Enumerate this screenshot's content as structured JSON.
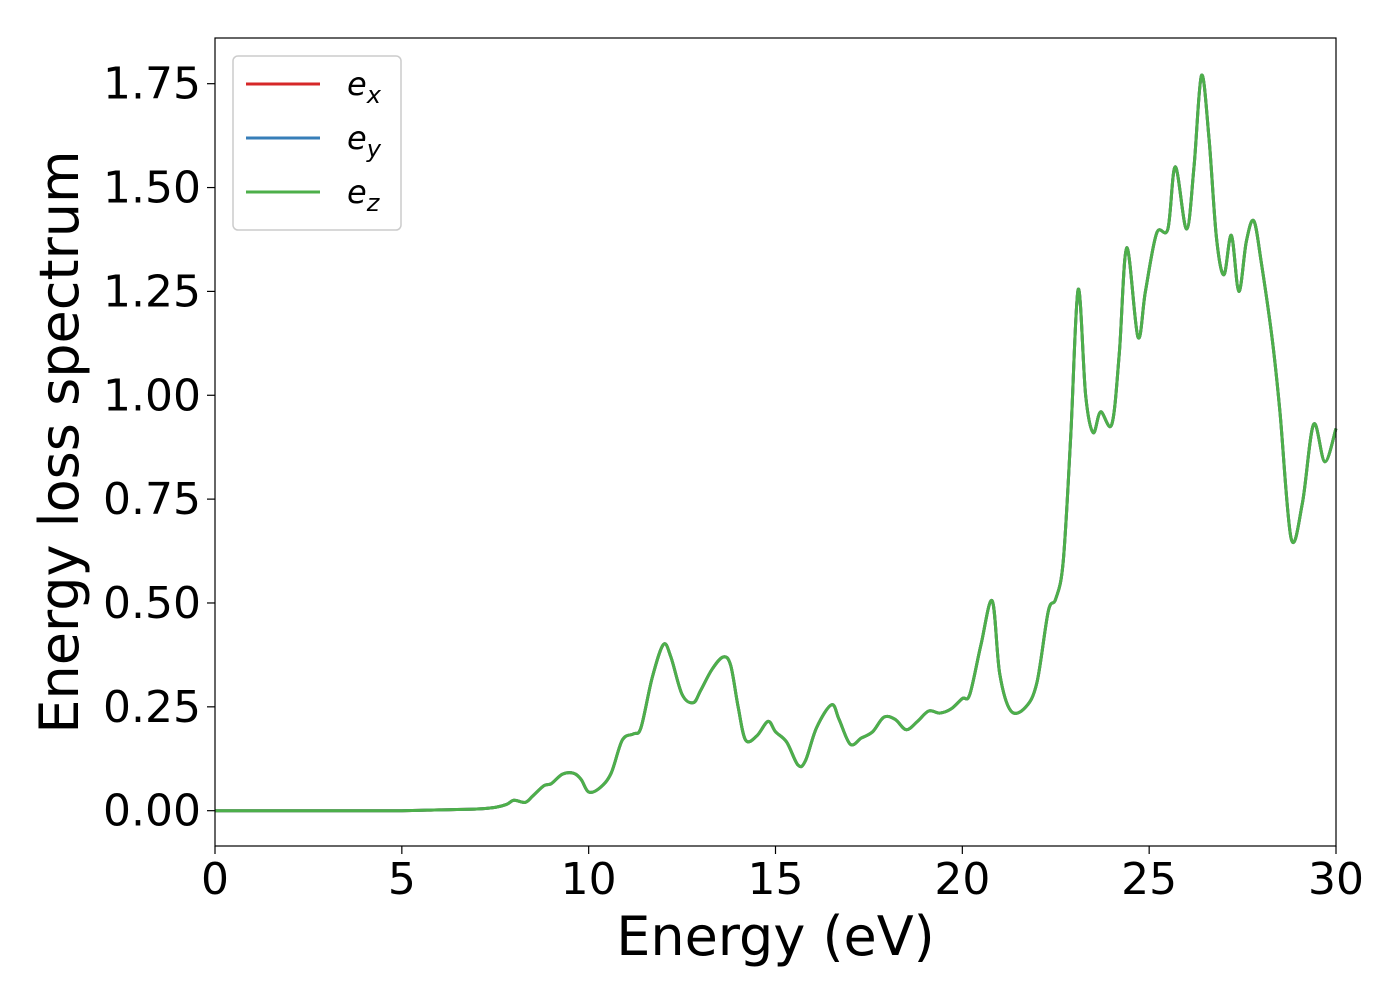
{
  "chart_data": {
    "type": "line",
    "title": "",
    "xlabel": "Energy (eV)",
    "ylabel": "Energy loss spectrum",
    "xlim": [
      0,
      30
    ],
    "ylim": [
      -0.085,
      1.86
    ],
    "xticks": [
      0,
      5,
      10,
      15,
      20,
      25,
      30
    ],
    "xtick_labels": [
      "0",
      "5",
      "10",
      "15",
      "20",
      "25",
      "30"
    ],
    "yticks": [
      0,
      0.25,
      0.5,
      0.75,
      1.0,
      1.25,
      1.5,
      1.75
    ],
    "ytick_labels": [
      "0.00",
      "0.25",
      "0.50",
      "0.75",
      "1.00",
      "1.25",
      "1.50",
      "1.75"
    ],
    "grid": false,
    "legend_position": "top-left",
    "x": [
      0,
      2,
      4,
      5,
      6,
      7,
      7.5,
      7.8,
      8.0,
      8.3,
      8.5,
      8.8,
      9.0,
      9.3,
      9.6,
      9.8,
      10.0,
      10.3,
      10.6,
      10.9,
      11.2,
      11.4,
      11.7,
      12.0,
      12.2,
      12.5,
      12.8,
      13.0,
      13.3,
      13.6,
      13.8,
      14.0,
      14.2,
      14.5,
      14.8,
      15.0,
      15.3,
      15.6,
      15.8,
      16.1,
      16.5,
      16.7,
      17.0,
      17.3,
      17.6,
      17.9,
      18.2,
      18.5,
      18.8,
      19.1,
      19.4,
      19.7,
      20.0,
      20.2,
      20.5,
      20.8,
      21.0,
      21.3,
      21.7,
      22.0,
      22.3,
      22.5,
      22.7,
      22.9,
      23.1,
      23.3,
      23.5,
      23.7,
      24.0,
      24.2,
      24.4,
      24.7,
      24.9,
      25.2,
      25.5,
      25.7,
      26.0,
      26.2,
      26.4,
      26.6,
      26.8,
      27.0,
      27.2,
      27.4,
      27.6,
      27.8,
      28.0,
      28.3,
      28.5,
      28.8,
      29.1,
      29.4,
      29.7,
      30.0
    ],
    "series": [
      {
        "name": "e_x",
        "color": "#d62728",
        "values": [
          0,
          0,
          0,
          0,
          0.002,
          0.004,
          0.008,
          0.015,
          0.025,
          0.02,
          0.035,
          0.06,
          0.065,
          0.088,
          0.09,
          0.075,
          0.045,
          0.055,
          0.09,
          0.17,
          0.185,
          0.2,
          0.32,
          0.4,
          0.37,
          0.28,
          0.26,
          0.29,
          0.34,
          0.37,
          0.35,
          0.25,
          0.17,
          0.18,
          0.215,
          0.19,
          0.165,
          0.11,
          0.12,
          0.2,
          0.255,
          0.22,
          0.16,
          0.175,
          0.19,
          0.225,
          0.22,
          0.195,
          0.215,
          0.24,
          0.235,
          0.245,
          0.27,
          0.28,
          0.4,
          0.505,
          0.33,
          0.24,
          0.25,
          0.31,
          0.48,
          0.51,
          0.6,
          0.9,
          1.255,
          1.0,
          0.91,
          0.96,
          0.93,
          1.1,
          1.355,
          1.14,
          1.25,
          1.39,
          1.4,
          1.55,
          1.4,
          1.55,
          1.77,
          1.62,
          1.38,
          1.29,
          1.385,
          1.25,
          1.37,
          1.42,
          1.32,
          1.13,
          0.96,
          0.655,
          0.74,
          0.93,
          0.84,
          0.92
        ]
      },
      {
        "name": "e_y",
        "color": "#377eb8",
        "values": [
          0,
          0,
          0,
          0,
          0.002,
          0.004,
          0.008,
          0.015,
          0.025,
          0.02,
          0.035,
          0.06,
          0.065,
          0.088,
          0.09,
          0.075,
          0.045,
          0.055,
          0.09,
          0.17,
          0.185,
          0.2,
          0.32,
          0.4,
          0.37,
          0.28,
          0.26,
          0.29,
          0.34,
          0.37,
          0.35,
          0.25,
          0.17,
          0.18,
          0.215,
          0.19,
          0.165,
          0.11,
          0.12,
          0.2,
          0.255,
          0.22,
          0.16,
          0.175,
          0.19,
          0.225,
          0.22,
          0.195,
          0.215,
          0.24,
          0.235,
          0.245,
          0.27,
          0.28,
          0.4,
          0.505,
          0.33,
          0.24,
          0.25,
          0.31,
          0.48,
          0.51,
          0.6,
          0.9,
          1.255,
          1.0,
          0.91,
          0.96,
          0.93,
          1.1,
          1.355,
          1.14,
          1.25,
          1.39,
          1.4,
          1.55,
          1.4,
          1.55,
          1.77,
          1.62,
          1.38,
          1.29,
          1.385,
          1.25,
          1.37,
          1.42,
          1.32,
          1.13,
          0.96,
          0.655,
          0.74,
          0.93,
          0.84,
          0.92
        ]
      },
      {
        "name": "e_z",
        "color": "#4daf4a",
        "values": [
          0,
          0,
          0,
          0,
          0.002,
          0.004,
          0.008,
          0.015,
          0.025,
          0.02,
          0.035,
          0.06,
          0.065,
          0.088,
          0.09,
          0.075,
          0.045,
          0.055,
          0.09,
          0.17,
          0.185,
          0.2,
          0.32,
          0.4,
          0.37,
          0.28,
          0.26,
          0.29,
          0.34,
          0.37,
          0.35,
          0.25,
          0.17,
          0.18,
          0.215,
          0.19,
          0.165,
          0.11,
          0.12,
          0.2,
          0.255,
          0.22,
          0.16,
          0.175,
          0.19,
          0.225,
          0.22,
          0.195,
          0.215,
          0.24,
          0.235,
          0.245,
          0.27,
          0.28,
          0.4,
          0.505,
          0.33,
          0.24,
          0.25,
          0.31,
          0.48,
          0.51,
          0.6,
          0.9,
          1.255,
          1.0,
          0.91,
          0.96,
          0.93,
          1.1,
          1.355,
          1.14,
          1.25,
          1.39,
          1.4,
          1.55,
          1.4,
          1.55,
          1.77,
          1.62,
          1.38,
          1.29,
          1.385,
          1.25,
          1.37,
          1.42,
          1.32,
          1.13,
          0.96,
          0.655,
          0.74,
          0.93,
          0.84,
          0.92
        ]
      }
    ],
    "legend": [
      {
        "base": "e",
        "sub": "x",
        "color": "#d62728"
      },
      {
        "base": "e",
        "sub": "y",
        "color": "#377eb8"
      },
      {
        "base": "e",
        "sub": "z",
        "color": "#4daf4a"
      }
    ]
  }
}
